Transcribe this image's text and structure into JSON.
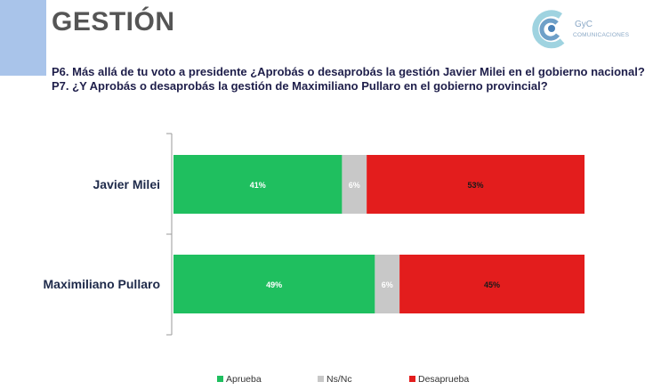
{
  "header": {
    "title": "GESTIÓN",
    "logo": {
      "name": "gyc-logo-icon",
      "line1": "GyC",
      "line2": "COMUNICACIONES"
    },
    "questions": [
      "P6. Más allá de tu voto a presidente ¿Aprobás o desaprobás la gestión Javier Milei en el gobierno nacional?",
      "P7. ¿Y Aprobás o desaprobás la gestión de Maximiliano Pullaro en el gobierno provincial?"
    ]
  },
  "colors": {
    "approve": "#1fbf5f",
    "nsnc": "#c8c8c8",
    "disapprove": "#e31d1d",
    "axis": "#9a9a9a",
    "category_text": "#1e2a4a",
    "accent": "#a9c4ea"
  },
  "chart_data": {
    "type": "bar",
    "orientation": "horizontal",
    "stacked": true,
    "categories": [
      "Javier Milei",
      "Maximiliano Pullaro"
    ],
    "series": [
      {
        "name": "Aprueba",
        "values": [
          41,
          49
        ],
        "labels": [
          "41%",
          "49%"
        ]
      },
      {
        "name": "Ns/Nc",
        "values": [
          6,
          6
        ],
        "labels": [
          "6%",
          "6%"
        ]
      },
      {
        "name": "Desaprueba",
        "values": [
          53,
          45
        ],
        "labels": [
          "53%",
          "45%"
        ]
      }
    ],
    "xlim": [
      0,
      100
    ],
    "legend_position": "bottom",
    "grid": false
  }
}
